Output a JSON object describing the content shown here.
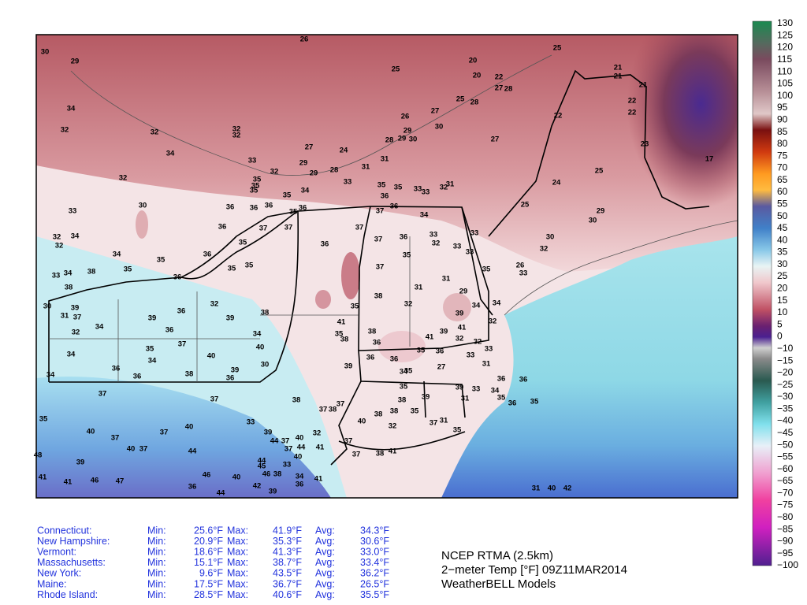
{
  "colorbar": {
    "labels": [
      "130",
      "125",
      "120",
      "115",
      "110",
      "105",
      "100",
      "95",
      "90",
      "85",
      "80",
      "75",
      "70",
      "65",
      "60",
      "55",
      "50",
      "45",
      "40",
      "35",
      "30",
      "25",
      "20",
      "15",
      "10",
      "5",
      "0",
      "−10",
      "−15",
      "−20",
      "−25",
      "−30",
      "−35",
      "−40",
      "−45",
      "−50",
      "−55",
      "−60",
      "−65",
      "−70",
      "−75",
      "−80",
      "−85",
      "−90",
      "−95",
      "−100"
    ]
  },
  "stations": [
    26,
    30,
    29,
    25,
    20,
    20,
    25,
    22,
    27,
    28,
    21,
    21,
    21,
    22,
    22,
    22,
    34,
    32,
    32,
    32,
    32,
    34,
    33,
    27,
    24,
    26,
    27,
    25,
    28,
    29,
    30,
    28,
    29,
    30,
    31,
    27,
    23,
    29,
    29,
    28,
    31,
    32,
    35,
    35,
    35,
    33,
    32,
    35,
    34,
    35,
    36,
    35,
    33,
    33,
    32,
    31,
    24,
    25,
    17,
    33,
    30,
    36,
    36,
    36,
    36,
    35,
    37,
    36,
    34,
    25,
    29,
    30,
    36,
    37,
    37,
    37,
    37,
    36,
    33,
    32,
    33,
    30,
    32,
    32,
    34,
    32,
    34,
    35,
    36,
    35,
    36,
    35,
    33,
    33,
    26,
    33,
    33,
    34,
    38,
    38,
    35,
    36,
    35,
    35,
    37,
    35,
    31,
    29,
    30,
    39,
    38,
    35,
    32,
    31,
    34,
    32,
    36,
    38,
    34,
    34,
    31,
    37,
    39,
    36,
    39,
    41,
    38,
    39,
    41,
    32,
    32,
    34,
    35,
    38,
    37,
    35,
    39,
    41,
    32,
    32,
    34,
    34,
    40,
    40,
    36,
    35,
    36,
    33,
    33,
    36,
    36,
    38,
    39,
    36,
    30,
    39,
    36,
    36,
    34,
    35,
    27,
    31,
    34,
    35,
    39,
    33,
    36,
    36,
    37,
    37,
    38,
    39,
    38,
    31,
    34,
    35,
    36,
    35,
    37,
    38,
    37,
    38,
    38,
    35,
    35,
    33,
    40,
    40,
    32,
    40,
    32,
    40,
    39,
    37,
    37,
    44,
    44,
    37,
    37,
    37,
    31,
    35,
    37,
    41,
    40,
    37,
    44,
    48,
    39,
    44,
    45,
    33,
    40,
    37,
    38,
    41,
    41,
    41,
    46,
    47,
    46,
    46,
    40,
    38,
    34,
    41,
    36,
    44,
    42,
    39,
    36,
    31,
    40,
    42
  ],
  "table": {
    "labels": {
      "min": "Min:",
      "max": "Max:",
      "avg": "Avg:"
    },
    "rows": [
      [
        "Connecticut:",
        "25.6°F",
        "41.9°F",
        "34.3°F"
      ],
      [
        "New Hampshire:",
        "20.9°F",
        "35.3°F",
        "30.6°F"
      ],
      [
        "Vermont:",
        "18.6°F",
        "41.3°F",
        "33.0°F"
      ],
      [
        "Massachusetts:",
        "15.1°F",
        "38.7°F",
        "33.4°F"
      ],
      [
        "New York:",
        "9.6°F",
        "43.5°F",
        "36.2°F"
      ],
      [
        "Maine:",
        "17.5°F",
        "36.7°F",
        "26.5°F"
      ],
      [
        "Rhode Island:",
        "28.5°F",
        "40.6°F",
        "35.5°F"
      ]
    ]
  },
  "title": {
    "line1": "NCEP RTMA (2.5km)",
    "line2": "2−meter Temp [°F] 09Z11MAR2014",
    "line3": "WeatherBELL Models"
  }
}
